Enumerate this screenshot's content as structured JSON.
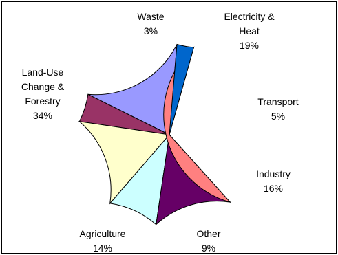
{
  "chart_data": {
    "type": "pie",
    "title": "",
    "slices": [
      {
        "label": "Electricity & Heat",
        "lines": [
          "Electricity &",
          "Heat",
          "19%"
        ],
        "value": 19,
        "color": "#9999ff"
      },
      {
        "label": "Transport",
        "lines": [
          "Transport",
          "5%"
        ],
        "value": 5,
        "color": "#993366"
      },
      {
        "label": "Industry",
        "lines": [
          "Industry",
          "16%"
        ],
        "value": 16,
        "color": "#ffffcc"
      },
      {
        "label": "Other",
        "lines": [
          "Other",
          "9%"
        ],
        "value": 9,
        "color": "#ccffff"
      },
      {
        "label": "Agriculture",
        "lines": [
          "Agriculture",
          "14%"
        ],
        "value": 14,
        "color": "#660066"
      },
      {
        "label": "Land-Use Change & Forestry",
        "lines": [
          "Land-Use",
          "Change &",
          "Forestry",
          "34%"
        ],
        "value": 34,
        "color": "#ff8080"
      },
      {
        "label": "Waste",
        "lines": [
          "Waste",
          "3%"
        ],
        "value": 3,
        "color": "#0066cc"
      }
    ],
    "legend": "none"
  }
}
